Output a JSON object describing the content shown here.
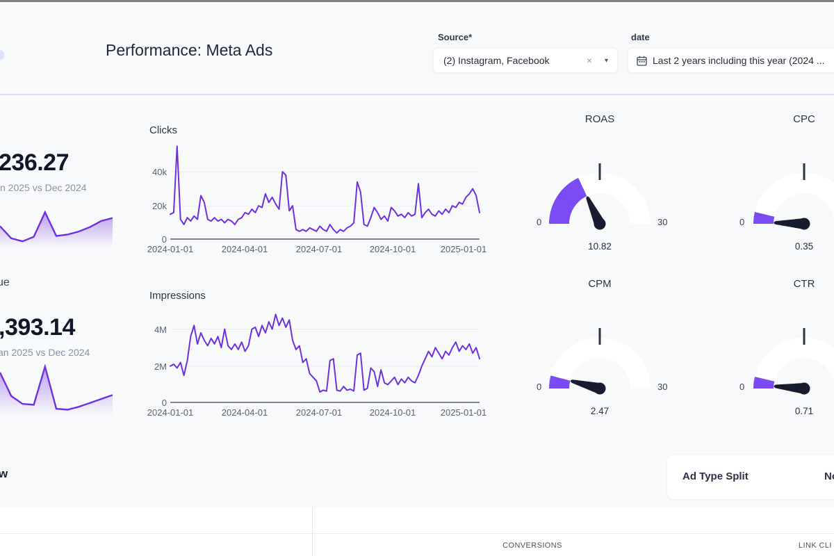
{
  "theme": {
    "accent_purple": "#6e2fe3",
    "gauge_fill": "#7b4af2",
    "needle_color": "#171d2f",
    "background": "#f8f9fb",
    "card_white": "#ffffff",
    "header_divider": "#dcd8f2"
  },
  "header": {
    "title": "Performance: Meta Ads",
    "source_filter": {
      "label": "Source",
      "required_mark": "*",
      "value": "(2) Instagram, Facebook",
      "clear_icon": "×",
      "caret_icon": "▾"
    },
    "date_filter": {
      "label": "date",
      "value": "Last 2 years including this year (2024 ..."
    }
  },
  "kpis": [
    {
      "value_fragment": "236.27",
      "subtitle_fragment": "n 2025 vs Dec 2024"
    },
    {
      "title_fragment": "ue",
      "value_fragment": ",393.14",
      "subtitle_fragment": "an 2025 vs Dec 2024"
    }
  ],
  "bottom": {
    "left_heading_fragment": "w",
    "ad_type_card": {
      "title": "Ad Type Split",
      "right_fragment": "No"
    },
    "table_headers": {
      "conversions": "CONVERSIONS",
      "link_clicks_fragment": "LINK CLI"
    }
  },
  "chart_data": [
    {
      "id": "clicks",
      "type": "line",
      "title": "Clicks",
      "unit": "clicks per day (thousands)",
      "color": "#6e2fe3",
      "grid": true,
      "legend": "none",
      "x_tick_labels": [
        "2024-01-01",
        "2024-04-01",
        "2024-07-01",
        "2024-10-01",
        "2025-01-01"
      ],
      "y_tick_labels": [
        "0",
        "20k",
        "40k"
      ],
      "y_ticks": [
        0,
        20,
        40
      ],
      "ylim": [
        0,
        56
      ],
      "values": [
        15,
        16,
        55,
        12,
        9,
        13,
        11,
        14,
        12,
        26,
        22,
        12,
        11,
        13,
        11,
        12,
        10,
        12,
        11,
        9,
        12,
        13,
        16,
        15,
        18,
        16,
        20,
        19,
        27,
        22,
        25,
        21,
        18,
        40,
        38,
        17,
        20,
        6,
        5,
        6,
        5,
        7,
        6,
        5,
        8,
        6,
        5,
        9,
        6,
        4,
        6,
        5,
        7,
        8,
        10,
        34,
        28,
        9,
        8,
        13,
        19,
        16,
        12,
        14,
        11,
        19,
        17,
        14,
        15,
        13,
        16,
        14,
        15,
        33,
        13,
        16,
        18,
        15,
        14,
        17,
        15,
        18,
        16,
        20,
        19,
        22,
        21,
        25,
        27,
        30,
        26,
        16
      ]
    },
    {
      "id": "impressions",
      "type": "line",
      "title": "Impressions",
      "unit": "impressions per day (millions)",
      "color": "#6e2fe3",
      "grid": true,
      "legend": "none",
      "x_tick_labels": [
        "2024-01-01",
        "2024-04-01",
        "2024-07-01",
        "2024-10-01",
        "2025-01-01"
      ],
      "y_tick_labels": [
        "0",
        "2M",
        "4M"
      ],
      "y_ticks": [
        0,
        2,
        4
      ],
      "ylim": [
        0,
        5.0
      ],
      "values": [
        2.0,
        2.1,
        1.9,
        2.2,
        1.5,
        2.3,
        3.6,
        4.2,
        3.2,
        3.8,
        3.4,
        3.1,
        3.5,
        3.2,
        3.6,
        3.0,
        4.0,
        3.1,
        2.9,
        3.2,
        2.9,
        3.3,
        2.8,
        3.1,
        4.0,
        4.1,
        3.6,
        4.2,
        3.8,
        4.4,
        4.0,
        4.8,
        4.2,
        4.6,
        4.1,
        4.5,
        3.4,
        2.9,
        3.1,
        2.2,
        2.4,
        1.6,
        1.4,
        1.2,
        0.6,
        0.7,
        0.65,
        2.3,
        2.4,
        0.7,
        0.65,
        0.9,
        0.7,
        0.75,
        0.65,
        2.6,
        2.7,
        0.7,
        0.8,
        1.9,
        1.7,
        0.9,
        1.8,
        1.1,
        1.0,
        1.2,
        1.4,
        1.0,
        1.3,
        1.1,
        1.4,
        1.2,
        1.1,
        1.5,
        2.0,
        2.4,
        2.8,
        2.5,
        3.0,
        2.7,
        2.4,
        2.8,
        2.6,
        3.0,
        3.3,
        2.8,
        3.1,
        2.9,
        3.2,
        2.7,
        3.0,
        2.4
      ]
    },
    {
      "id": "roas",
      "type": "gauge",
      "title": "ROAS",
      "value": 10.82,
      "min": 0,
      "max": 30,
      "min_label": "0",
      "max_label": "30"
    },
    {
      "id": "cpc",
      "type": "gauge",
      "title": "CPC",
      "value": 0.35,
      "min": 0,
      "min_label": "0"
    },
    {
      "id": "cpm",
      "type": "gauge",
      "title": "CPM",
      "value": 2.47,
      "min": 0,
      "max": 30,
      "min_label": "0",
      "max_label": "30"
    },
    {
      "id": "ctr",
      "type": "gauge",
      "title": "CTR",
      "value": 0.71,
      "min": 0,
      "min_label": "0"
    },
    {
      "id": "kpi1-spark",
      "type": "area",
      "title": "",
      "ylim": [
        0,
        105
      ],
      "values": [
        58,
        26,
        18,
        30,
        95,
        32,
        36,
        44,
        56,
        72,
        80
      ]
    },
    {
      "id": "kpi2-spark",
      "type": "area",
      "title": "",
      "ylim": [
        0,
        105
      ],
      "values": [
        88,
        40,
        24,
        22,
        100,
        14,
        12,
        18,
        26,
        34,
        42
      ]
    }
  ]
}
